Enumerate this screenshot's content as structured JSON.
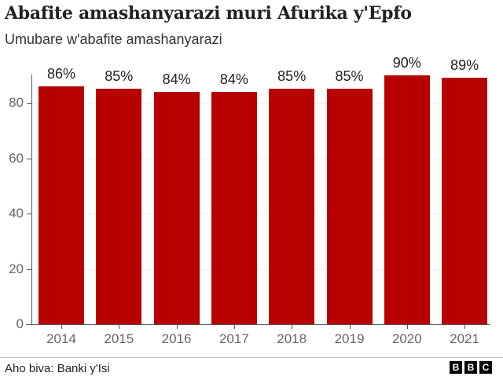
{
  "header": {
    "title": "Abafite amashanyarazi muri Afurika y'Epfo",
    "subtitle": "Umubare w'abafite amashanyarazi"
  },
  "footer": {
    "source": "Aho biva: Banki y'Isi",
    "logo": [
      "B",
      "B",
      "C"
    ]
  },
  "chart_data": {
    "type": "bar",
    "title": "Abafite amashanyarazi muri Afurika y'Epfo",
    "subtitle": "Umubare w'abafite amashanyarazi",
    "xlabel": "",
    "ylabel": "",
    "categories": [
      "2014",
      "2015",
      "2016",
      "2017",
      "2018",
      "2019",
      "2020",
      "2021"
    ],
    "values": [
      86,
      85,
      84,
      84,
      85,
      85,
      90,
      89
    ],
    "data_labels": [
      "86%",
      "85%",
      "84%",
      "84%",
      "85%",
      "85%",
      "90%",
      "89%"
    ],
    "yticks": [
      0,
      20,
      40,
      60,
      80
    ],
    "ylim": [
      0,
      90
    ],
    "grid": true,
    "bar_color": "#b80000",
    "legend": null,
    "source": "Aho biva: Banki y'Isi"
  }
}
